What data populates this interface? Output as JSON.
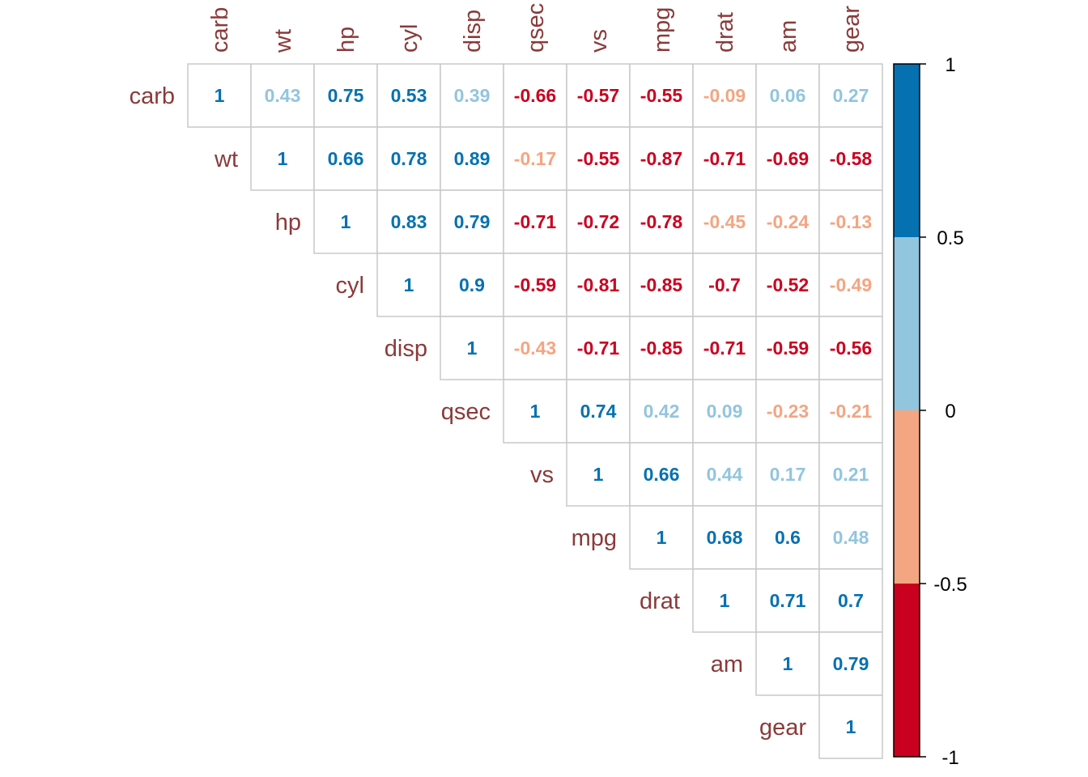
{
  "chart_data": {
    "type": "heatmap",
    "subtype": "correlation-matrix-upper",
    "variables": [
      "carb",
      "wt",
      "hp",
      "cyl",
      "disp",
      "qsec",
      "vs",
      "mpg",
      "drat",
      "am",
      "gear"
    ],
    "matrix": [
      [
        1,
        0.43,
        0.75,
        0.53,
        0.39,
        -0.66,
        -0.57,
        -0.55,
        -0.09,
        0.06,
        0.27
      ],
      [
        null,
        1,
        0.66,
        0.78,
        0.89,
        -0.17,
        -0.55,
        -0.87,
        -0.71,
        -0.69,
        -0.58
      ],
      [
        null,
        null,
        1,
        0.83,
        0.79,
        -0.71,
        -0.72,
        -0.78,
        -0.45,
        -0.24,
        -0.13
      ],
      [
        null,
        null,
        null,
        1,
        0.9,
        -0.59,
        -0.81,
        -0.85,
        -0.7,
        -0.52,
        -0.49
      ],
      [
        null,
        null,
        null,
        null,
        1,
        -0.43,
        -0.71,
        -0.85,
        -0.71,
        -0.59,
        -0.56
      ],
      [
        null,
        null,
        null,
        null,
        null,
        1,
        0.74,
        0.42,
        0.09,
        -0.23,
        -0.21
      ],
      [
        null,
        null,
        null,
        null,
        null,
        null,
        1,
        0.66,
        0.44,
        0.17,
        0.21
      ],
      [
        null,
        null,
        null,
        null,
        null,
        null,
        null,
        1,
        0.68,
        0.6,
        0.48
      ],
      [
        null,
        null,
        null,
        null,
        null,
        null,
        null,
        null,
        1,
        0.71,
        0.7
      ],
      [
        null,
        null,
        null,
        null,
        null,
        null,
        null,
        null,
        null,
        1,
        0.79
      ],
      [
        null,
        null,
        null,
        null,
        null,
        null,
        null,
        null,
        null,
        null,
        1
      ]
    ],
    "legend": {
      "position": "right",
      "ticks": [
        "1",
        "0.5",
        "0",
        "-0.5",
        "-1"
      ],
      "bins": [
        {
          "from": 0.5,
          "to": 1,
          "color": "#0571B0"
        },
        {
          "from": 0,
          "to": 0.5,
          "color": "#92C5DE"
        },
        {
          "from": -0.5,
          "to": 0,
          "color": "#F4A582"
        },
        {
          "from": -1,
          "to": -0.5,
          "color": "#CA0020"
        }
      ]
    },
    "label_color": "#8B3A3A",
    "grid": true
  }
}
